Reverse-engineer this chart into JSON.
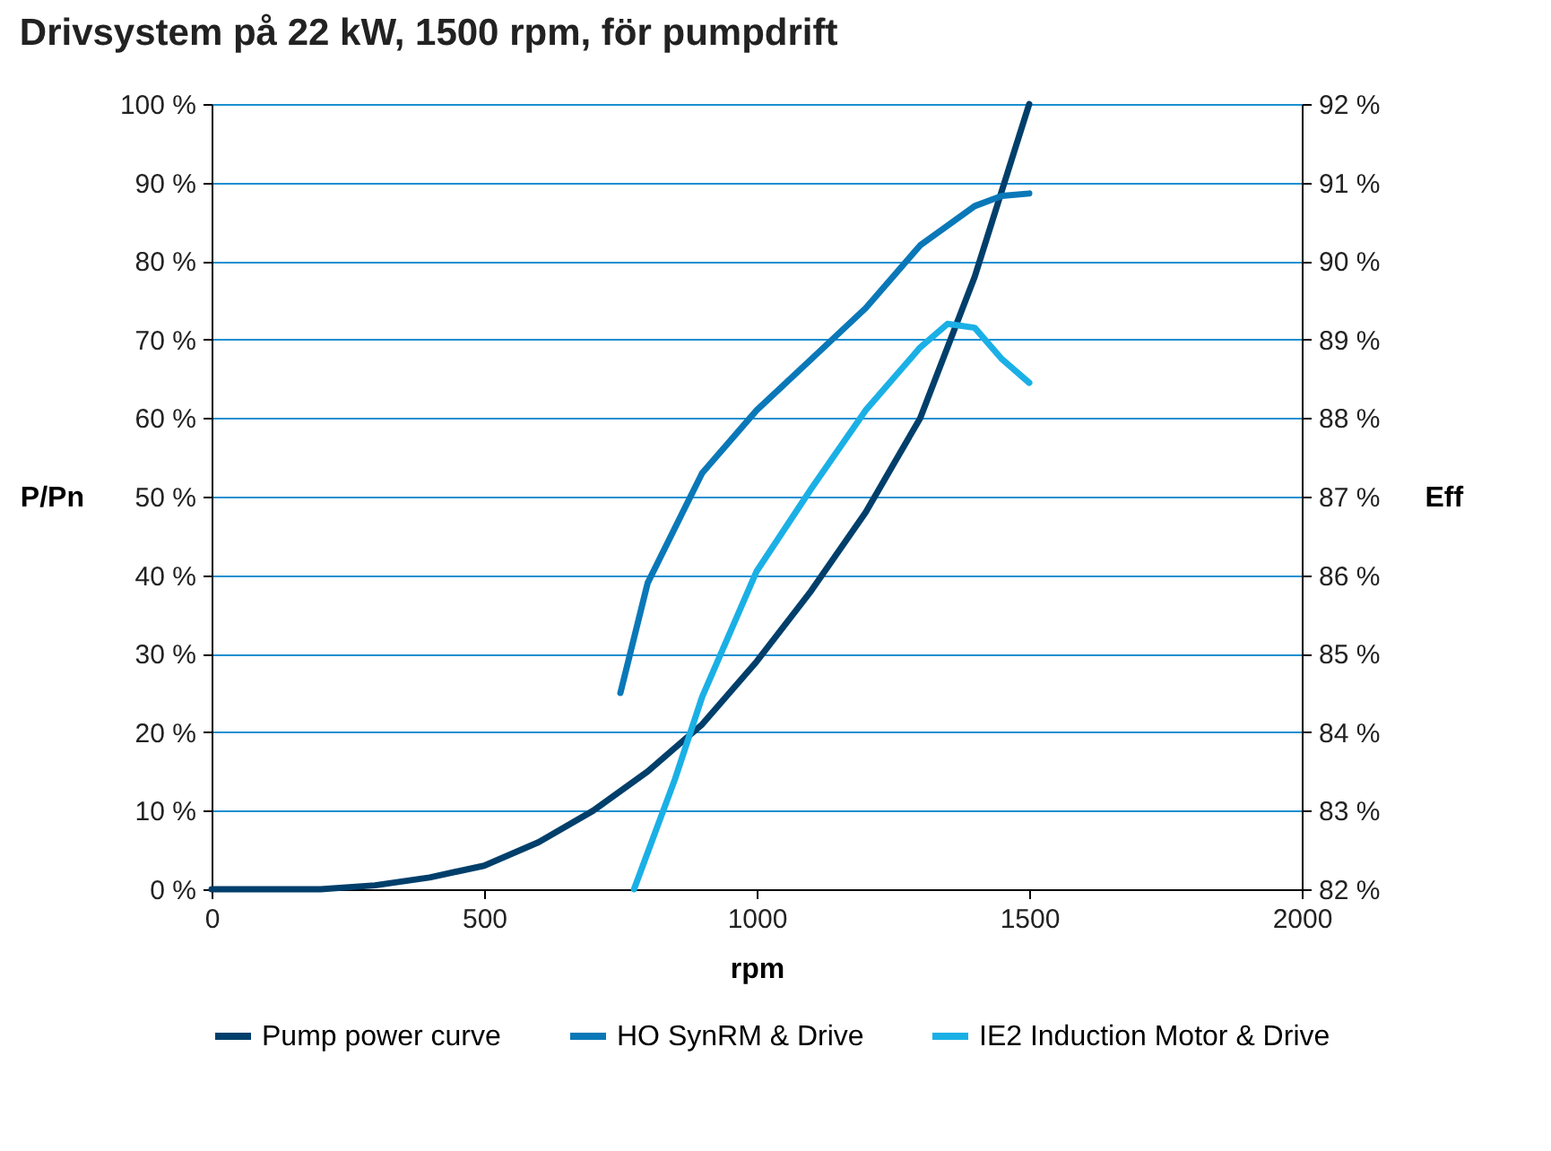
{
  "chart_data": {
    "type": "line",
    "title": "Drivsystem på 22 kW, 1500 rpm, för pumpdrift",
    "xlabel": "rpm",
    "ylabel": "P/Pn",
    "y2label": "Eff",
    "xlim": [
      0,
      2000
    ],
    "xticks": [
      0,
      500,
      1000,
      1500,
      2000
    ],
    "ylim": [
      0,
      100
    ],
    "yticks": [
      {
        "value": 0,
        "label": "0 %"
      },
      {
        "value": 10,
        "label": "10 %"
      },
      {
        "value": 20,
        "label": "20 %"
      },
      {
        "value": 30,
        "label": "30 %"
      },
      {
        "value": 40,
        "label": "40 %"
      },
      {
        "value": 50,
        "label": "50 %"
      },
      {
        "value": 60,
        "label": "60 %"
      },
      {
        "value": 70,
        "label": "70 %"
      },
      {
        "value": 80,
        "label": "80 %"
      },
      {
        "value": 90,
        "label": "90 %"
      },
      {
        "value": 100,
        "label": "100 %"
      }
    ],
    "y2lim": [
      82,
      92
    ],
    "y2ticks": [
      {
        "value": 82,
        "label": "82 %"
      },
      {
        "value": 83,
        "label": "83 %"
      },
      {
        "value": 84,
        "label": "84 %"
      },
      {
        "value": 85,
        "label": "85 %"
      },
      {
        "value": 86,
        "label": "86 %"
      },
      {
        "value": 87,
        "label": "87 %"
      },
      {
        "value": 88,
        "label": "88 %"
      },
      {
        "value": 89,
        "label": "89 %"
      },
      {
        "value": 90,
        "label": "90 %"
      },
      {
        "value": 91,
        "label": "91 %"
      },
      {
        "value": 92,
        "label": "92 %"
      }
    ],
    "grid": "y",
    "legend": "bottom",
    "series": [
      {
        "name": "Pump power curve",
        "color": "#003f6b",
        "x": [
          0,
          100,
          200,
          300,
          400,
          500,
          600,
          700,
          800,
          900,
          1000,
          1100,
          1200,
          1300,
          1400,
          1500
        ],
        "values": [
          0,
          0,
          0,
          0.5,
          1.5,
          3,
          6,
          10,
          15,
          21,
          29,
          38,
          48,
          60,
          78,
          100
        ]
      },
      {
        "name": "HO SynRM & Drive",
        "color": "#0a78b8",
        "axis": "y2",
        "x": [
          750,
          800,
          900,
          1000,
          1100,
          1200,
          1300,
          1400,
          1450,
          1500
        ],
        "values": [
          84.5,
          85.9,
          87.3,
          88.1,
          88.75,
          89.4,
          90.2,
          90.7,
          90.83,
          90.86
        ]
      },
      {
        "name": "IE2 Induction Motor & Drive",
        "color": "#1ab0e6",
        "axis": "y2",
        "x": [
          775,
          850,
          900,
          1000,
          1100,
          1200,
          1300,
          1350,
          1400,
          1450,
          1500
        ],
        "values": [
          82.0,
          83.4,
          84.45,
          86.05,
          87.1,
          88.1,
          88.9,
          89.2,
          89.15,
          88.75,
          88.45
        ]
      }
    ]
  }
}
